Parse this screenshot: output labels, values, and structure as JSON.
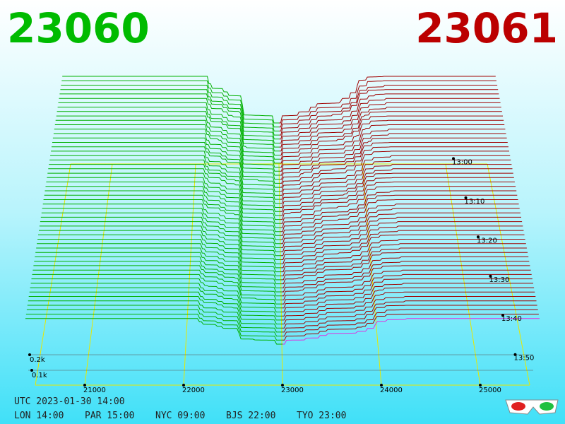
{
  "header": {
    "bid": "23060",
    "ask": "23061"
  },
  "price_axis": [
    "21000",
    "22000",
    "23000",
    "24000",
    "25000"
  ],
  "time_axis": [
    "13:00",
    "13:10",
    "13:20",
    "13:30",
    "13:40",
    "13:50"
  ],
  "depth_axis": [
    "0.2k",
    "0.1k"
  ],
  "footer": {
    "utc": "UTC 2023-01-30 14:00",
    "clocks": [
      "LON 14:00",
      "PAR 15:00",
      "NYC 09:00",
      "BJS 22:00",
      "TYO 23:00"
    ]
  }
}
